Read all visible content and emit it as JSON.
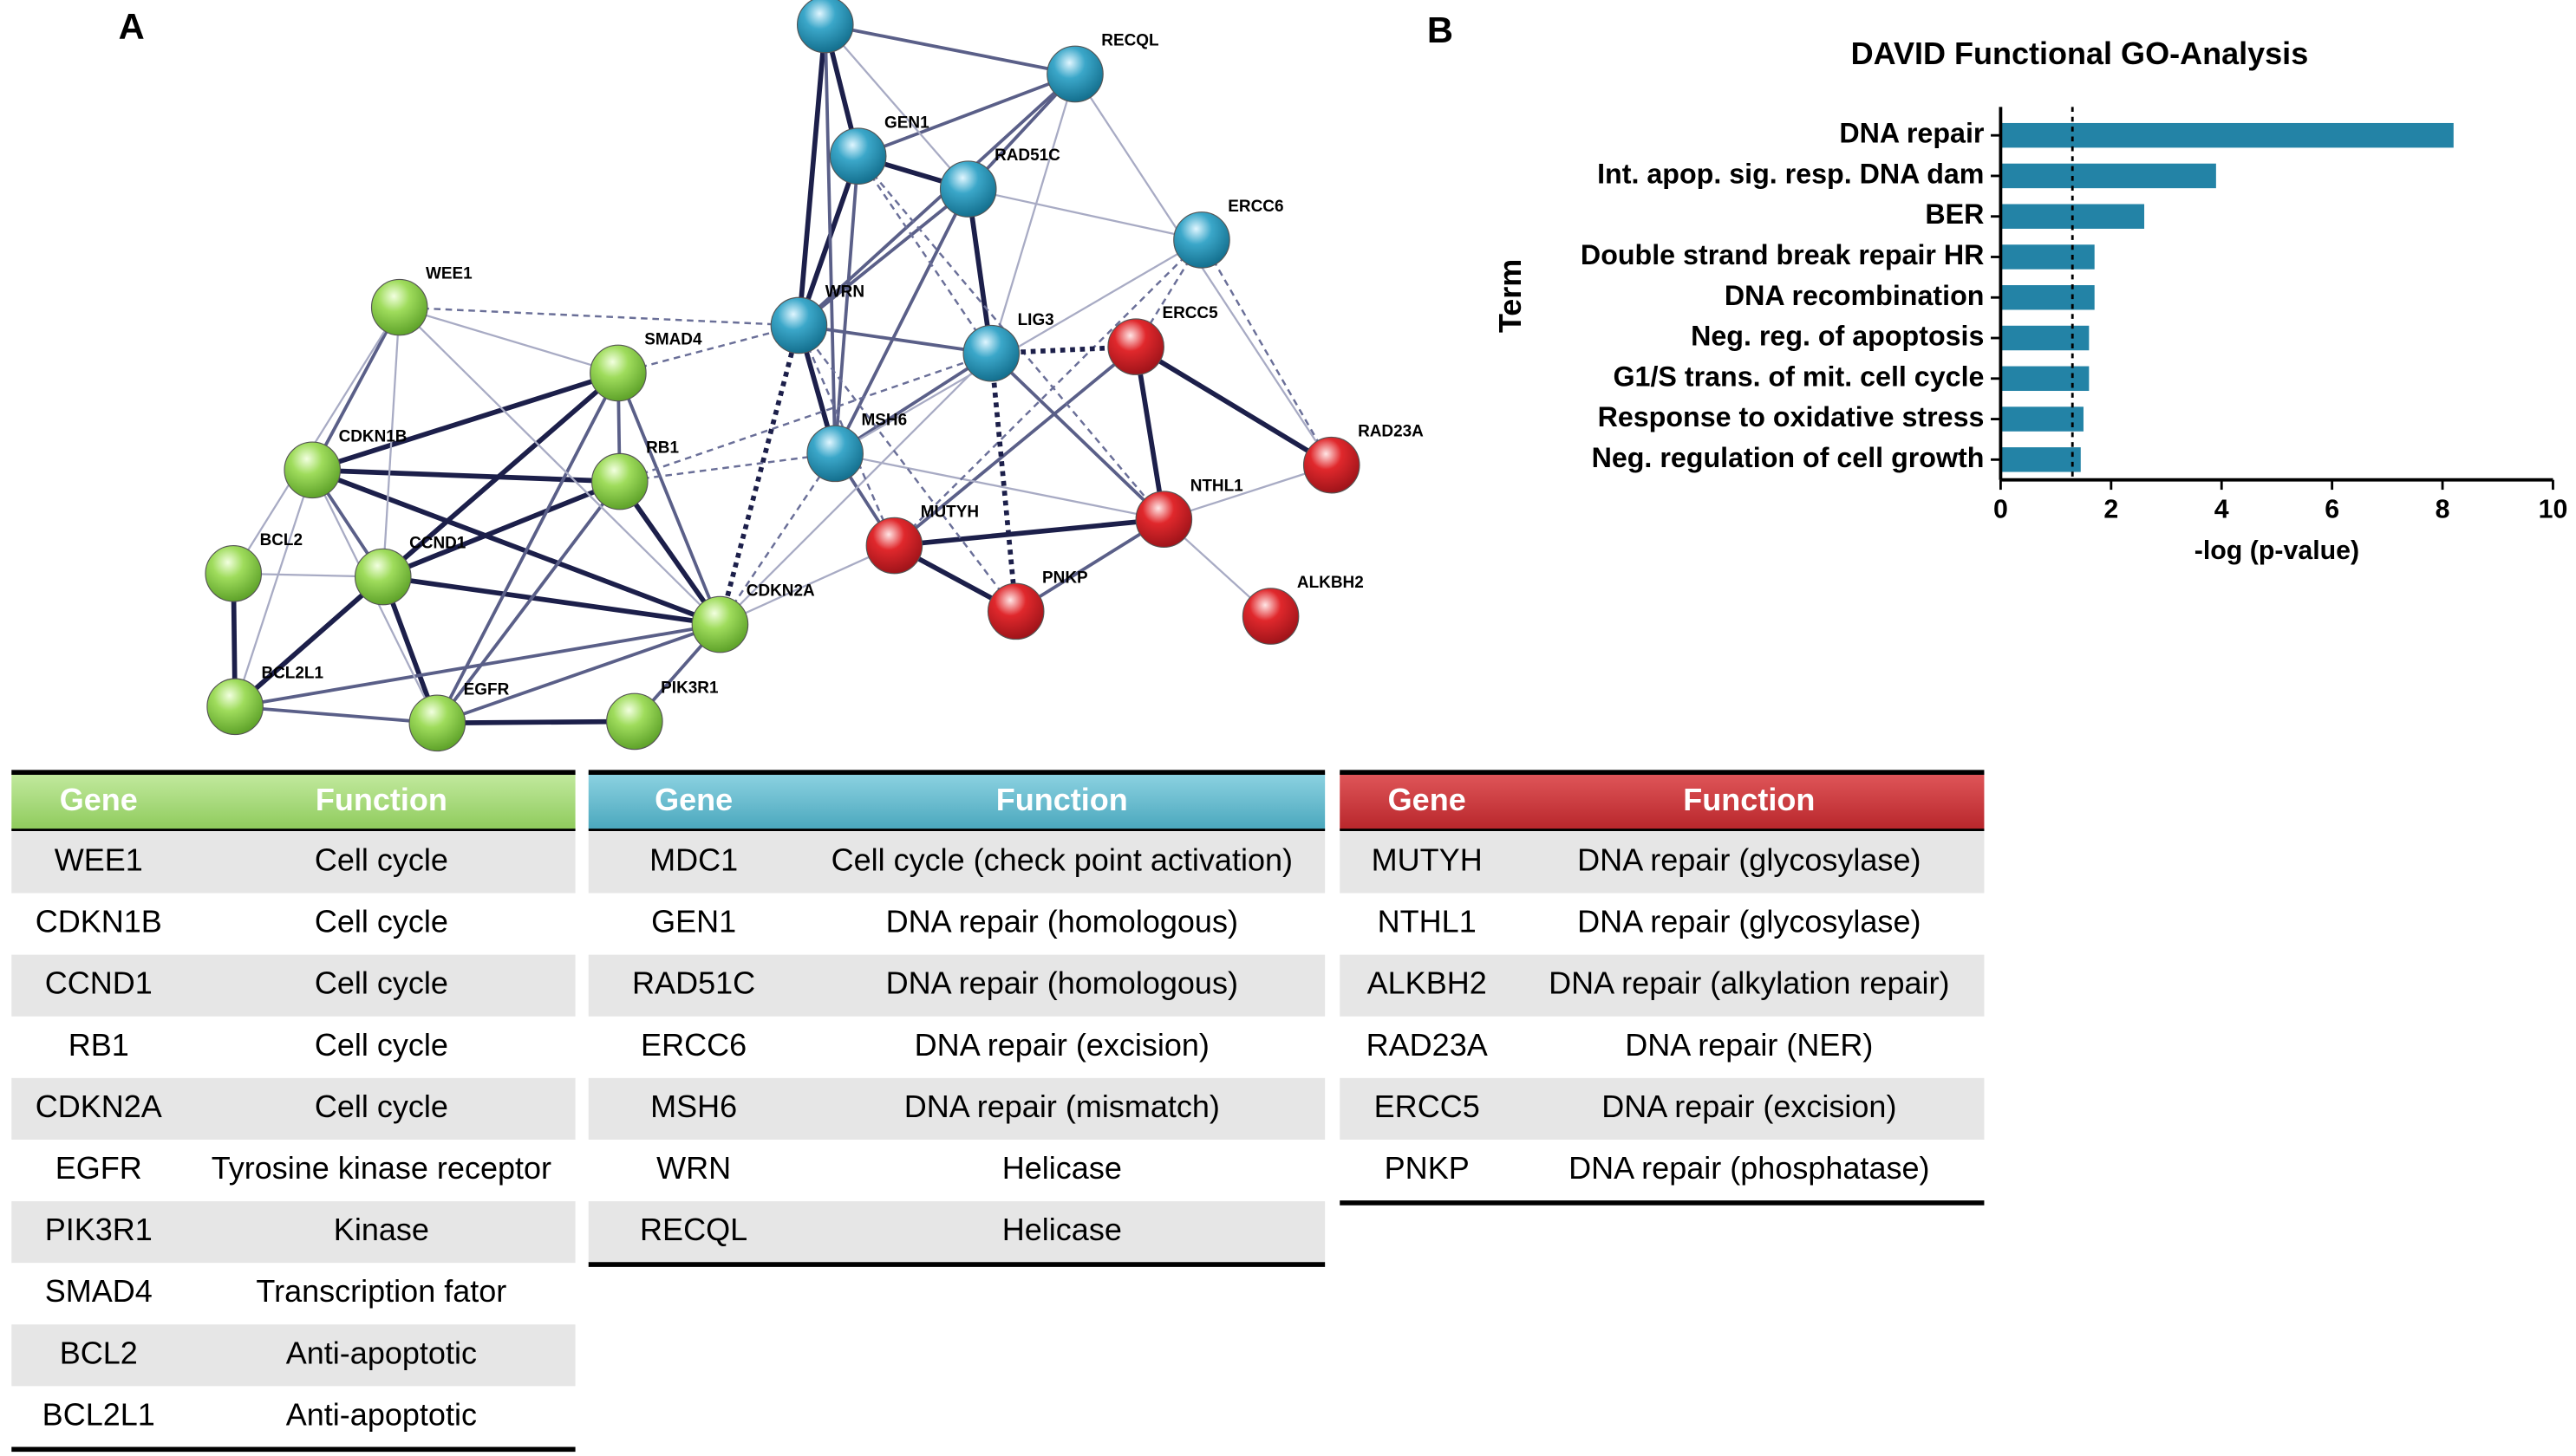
{
  "panels": [
    "A",
    "B"
  ],
  "network": {
    "nodes": [
      "WEE1",
      "SMAD4",
      "CDKN1B",
      "RB1",
      "BCL2",
      "CCND1",
      "CDKN2A",
      "BCL2L1",
      "EGFR",
      "PIK3R1",
      "RECQL",
      "GEN1",
      "RAD51C",
      "ERCC6",
      "WRN",
      "LIG3",
      "MSH6",
      "ERCC5",
      "RAD23A",
      "NTHL1",
      "MUTYH",
      "PNKP",
      "ALKBH2"
    ]
  },
  "tables": [
    {
      "header": [
        "Gene",
        "Function"
      ],
      "rows": [
        [
          "WEE1",
          "Cell cycle"
        ],
        [
          "CDKN1B",
          "Cell cycle"
        ],
        [
          "CCND1",
          "Cell cycle"
        ],
        [
          "RB1",
          "Cell cycle"
        ],
        [
          "CDKN2A",
          "Cell cycle"
        ],
        [
          "EGFR",
          "Tyrosine kinase receptor"
        ],
        [
          "PIK3R1",
          "Kinase"
        ],
        [
          "SMAD4",
          "Transcription fator"
        ],
        [
          "BCL2",
          "Anti-apoptotic"
        ],
        [
          "BCL2L1",
          "Anti-apoptotic"
        ]
      ]
    },
    {
      "header": [
        "Gene",
        "Function"
      ],
      "rows": [
        [
          "MDC1",
          "Cell cycle (check point activation)"
        ],
        [
          "GEN1",
          "DNA repair (homologous)"
        ],
        [
          "RAD51C",
          "DNA repair (homologous)"
        ],
        [
          "ERCC6",
          "DNA repair (excision)"
        ],
        [
          "MSH6",
          "DNA repair (mismatch)"
        ],
        [
          "WRN",
          "Helicase"
        ],
        [
          "RECQL",
          "Helicase"
        ]
      ]
    },
    {
      "header": [
        "Gene",
        "Function"
      ],
      "rows": [
        [
          "MUTYH",
          "DNA repair (glycosylase)"
        ],
        [
          "NTHL1",
          "DNA repair (glycosylase)"
        ],
        [
          "ALKBH2",
          "DNA repair (alkylation repair)"
        ],
        [
          "RAD23A",
          "DNA repair (NER)"
        ],
        [
          "ERCC5",
          "DNA repair (excision)"
        ],
        [
          "PNKP",
          "DNA repair (phosphatase)"
        ]
      ]
    }
  ],
  "chart_data": {
    "type": "hbar",
    "title": "DAVID Functional GO-Analysis",
    "categories": [
      "DNA repair",
      "Int. apop. sig. resp. DNA dam",
      "BER",
      "Double strand break repair HR",
      "DNA recombination",
      "Neg. reg. of apoptosis",
      "G1/S trans. of mit. cell cycle",
      "Response to oxidative stress",
      "Neg. regulation of cell growth"
    ],
    "values": [
      8.2,
      3.9,
      2.6,
      1.7,
      1.7,
      1.6,
      1.6,
      1.5,
      1.45
    ],
    "color": "#2383a6",
    "threshold": 1.3,
    "xlim": [
      0,
      10
    ],
    "xticks": [
      0,
      2,
      4,
      6,
      8,
      10
    ],
    "xlabel": "-log (p-value)",
    "ylabel": "Term"
  }
}
